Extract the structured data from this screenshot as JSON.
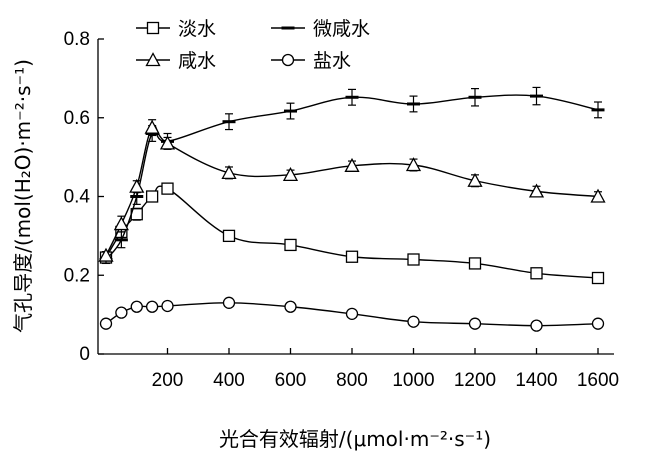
{
  "chart_data": {
    "type": "line",
    "xlabel": "光合有效辐射/(μmol·m⁻²·s⁻¹)",
    "ylabel": "气孔导度/(mol(H₂O)·m⁻²·s⁻¹)",
    "x_ticks": [
      "200",
      "400",
      "600",
      "800",
      "1000",
      "1200",
      "1400",
      "1600"
    ],
    "y_ticks": [
      "0",
      "0.2",
      "0.4",
      "0.6",
      "0.8"
    ],
    "xlim": [
      0,
      1600
    ],
    "ylim": [
      0,
      0.8
    ],
    "grid": false,
    "legend_position": "top",
    "series": [
      {
        "name": "淡水",
        "marker": "square",
        "points": [
          {
            "x": 0,
            "y": 0.245,
            "err": 0.01
          },
          {
            "x": 50,
            "y": 0.31,
            "err": 0.02
          },
          {
            "x": 100,
            "y": 0.355,
            "err": 0.015
          },
          {
            "x": 150,
            "y": 0.4,
            "err": 0.012
          },
          {
            "x": 200,
            "y": 0.42,
            "err": 0.012
          },
          {
            "x": 400,
            "y": 0.3,
            "err": 0.012
          },
          {
            "x": 600,
            "y": 0.277,
            "err": 0.01
          },
          {
            "x": 800,
            "y": 0.247,
            "err": 0.01
          },
          {
            "x": 1000,
            "y": 0.24,
            "err": 0.01
          },
          {
            "x": 1200,
            "y": 0.23,
            "err": 0.01
          },
          {
            "x": 1400,
            "y": 0.205,
            "err": 0.01
          },
          {
            "x": 1600,
            "y": 0.193,
            "err": 0.01
          }
        ]
      },
      {
        "name": "微咸水",
        "marker": "dash",
        "points": [
          {
            "x": 0,
            "y": 0.24,
            "err": 0.01
          },
          {
            "x": 50,
            "y": 0.29,
            "err": 0.02
          },
          {
            "x": 100,
            "y": 0.4,
            "err": 0.02
          },
          {
            "x": 150,
            "y": 0.56,
            "err": 0.02
          },
          {
            "x": 200,
            "y": 0.54,
            "err": 0.02
          },
          {
            "x": 400,
            "y": 0.59,
            "err": 0.02
          },
          {
            "x": 600,
            "y": 0.617,
            "err": 0.02
          },
          {
            "x": 800,
            "y": 0.652,
            "err": 0.02
          },
          {
            "x": 1000,
            "y": 0.635,
            "err": 0.02
          },
          {
            "x": 1200,
            "y": 0.652,
            "err": 0.022
          },
          {
            "x": 1400,
            "y": 0.655,
            "err": 0.022
          },
          {
            "x": 1600,
            "y": 0.62,
            "err": 0.02
          }
        ]
      },
      {
        "name": "咸水",
        "marker": "triangle",
        "points": [
          {
            "x": 0,
            "y": 0.25,
            "err": 0.01
          },
          {
            "x": 50,
            "y": 0.33,
            "err": 0.02
          },
          {
            "x": 100,
            "y": 0.425,
            "err": 0.015
          },
          {
            "x": 150,
            "y": 0.575,
            "err": 0.02
          },
          {
            "x": 200,
            "y": 0.535,
            "err": 0.015
          },
          {
            "x": 400,
            "y": 0.46,
            "err": 0.015
          },
          {
            "x": 600,
            "y": 0.455,
            "err": 0.012
          },
          {
            "x": 800,
            "y": 0.478,
            "err": 0.012
          },
          {
            "x": 1000,
            "y": 0.48,
            "err": 0.015
          },
          {
            "x": 1200,
            "y": 0.44,
            "err": 0.015
          },
          {
            "x": 1400,
            "y": 0.413,
            "err": 0.013
          },
          {
            "x": 1600,
            "y": 0.4,
            "err": 0.012
          }
        ]
      },
      {
        "name": "盐水",
        "marker": "circle",
        "points": [
          {
            "x": 0,
            "y": 0.077,
            "err": 0.005
          },
          {
            "x": 50,
            "y": 0.105,
            "err": 0.006
          },
          {
            "x": 100,
            "y": 0.12,
            "err": 0.006
          },
          {
            "x": 150,
            "y": 0.12,
            "err": 0.006
          },
          {
            "x": 200,
            "y": 0.122,
            "err": 0.006
          },
          {
            "x": 400,
            "y": 0.13,
            "err": 0.008
          },
          {
            "x": 600,
            "y": 0.12,
            "err": 0.006
          },
          {
            "x": 800,
            "y": 0.102,
            "err": 0.006
          },
          {
            "x": 1000,
            "y": 0.082,
            "err": 0.006
          },
          {
            "x": 1200,
            "y": 0.077,
            "err": 0.005
          },
          {
            "x": 1400,
            "y": 0.072,
            "err": 0.005
          },
          {
            "x": 1600,
            "y": 0.077,
            "err": 0.005
          }
        ]
      }
    ]
  }
}
